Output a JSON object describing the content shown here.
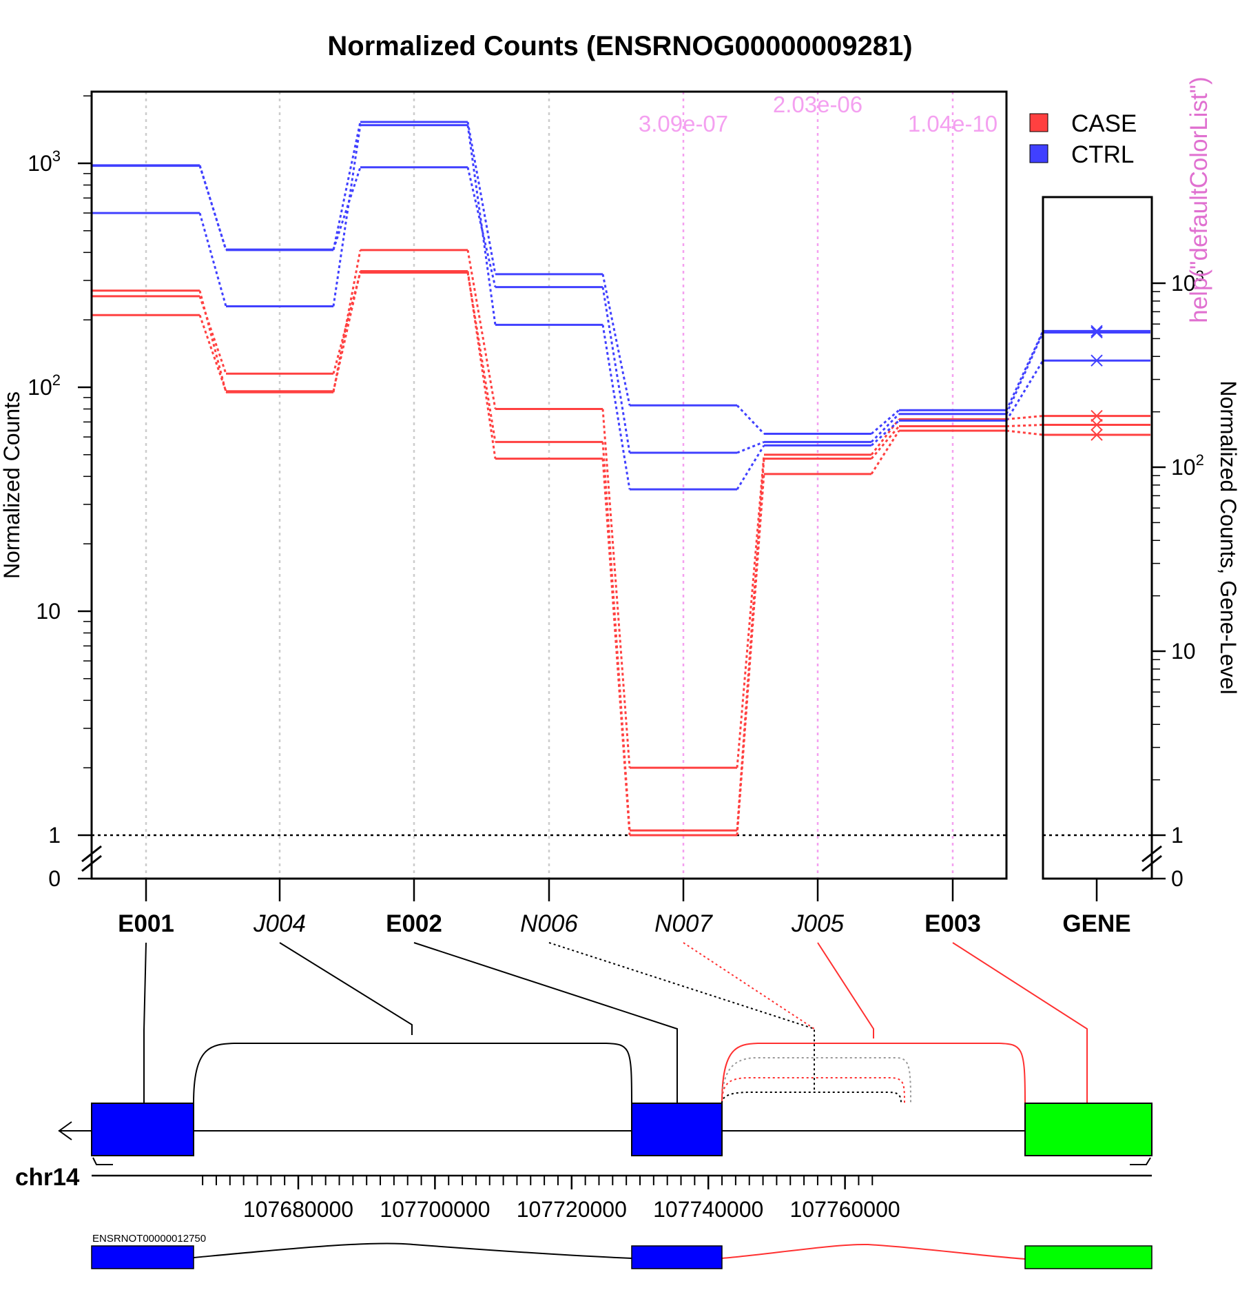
{
  "chart_data": {
    "type": "line",
    "title": "Normalized Counts (ENSRNOG00000009281)",
    "ylabel": "Normalized Counts",
    "ylabel_right": "Normalized Counts, Gene-Level",
    "y_scale": "log10",
    "ylim": [
      0,
      2000
    ],
    "ytick_labels": [
      "0",
      "1",
      "10",
      "10^2",
      "10^3"
    ],
    "right_ytick_labels": [
      "0",
      "1",
      "10",
      "10^2",
      "10^3"
    ],
    "grid": "vertical dotted lines at each feature",
    "legend_position": "top-right",
    "legend": [
      {
        "name": "CASE",
        "color": "#ff4040"
      },
      {
        "name": "CTRL",
        "color": "#4040ff"
      }
    ],
    "features": [
      {
        "id": "E001",
        "kind": "exon"
      },
      {
        "id": "J004",
        "kind": "junction"
      },
      {
        "id": "E002",
        "kind": "exon"
      },
      {
        "id": "N006",
        "kind": "novel"
      },
      {
        "id": "N007",
        "kind": "novel"
      },
      {
        "id": "J005",
        "kind": "junction"
      },
      {
        "id": "E003",
        "kind": "exon"
      }
    ],
    "gene_label": "GENE",
    "pvalues": [
      {
        "feature": "N007",
        "text": "3.09e-07"
      },
      {
        "feature": "J005",
        "text": "2.03e-06"
      },
      {
        "feature": "E003",
        "text": "1.04e-10"
      }
    ],
    "reference_line": 1,
    "series": [
      {
        "group": "CASE",
        "values": [
          270,
          95,
          410,
          80,
          2,
          50,
          72
        ]
      },
      {
        "group": "CASE",
        "values": [
          255,
          115,
          325,
          57,
          1.05,
          48,
          67
        ]
      },
      {
        "group": "CASE",
        "values": [
          210,
          96,
          330,
          48,
          1.0,
          41,
          64
        ]
      },
      {
        "group": "CTRL",
        "values": [
          980,
          410,
          1530,
          320,
          83,
          62,
          79
        ]
      },
      {
        "group": "CTRL",
        "values": [
          975,
          412,
          960,
          280,
          51,
          57,
          76
        ]
      },
      {
        "group": "CTRL",
        "values": [
          600,
          230,
          1480,
          190,
          35,
          55,
          71
        ]
      }
    ],
    "gene_values": [
      {
        "group": "CTRL",
        "values": [
          550,
          540,
          380
        ]
      },
      {
        "group": "CASE",
        "values": [
          190,
          170,
          150
        ]
      }
    ],
    "genome": {
      "chromosome": "chr14",
      "xticks": [
        "107680000",
        "107700000",
        "107720000",
        "107740000",
        "107760000"
      ],
      "transcript": "ENSRNOT00000012750",
      "exon_colors": {
        "tested": "#0000ff",
        "significant": "#00ff00"
      }
    },
    "overlay_text": "help(\"defaultColorList\")"
  }
}
